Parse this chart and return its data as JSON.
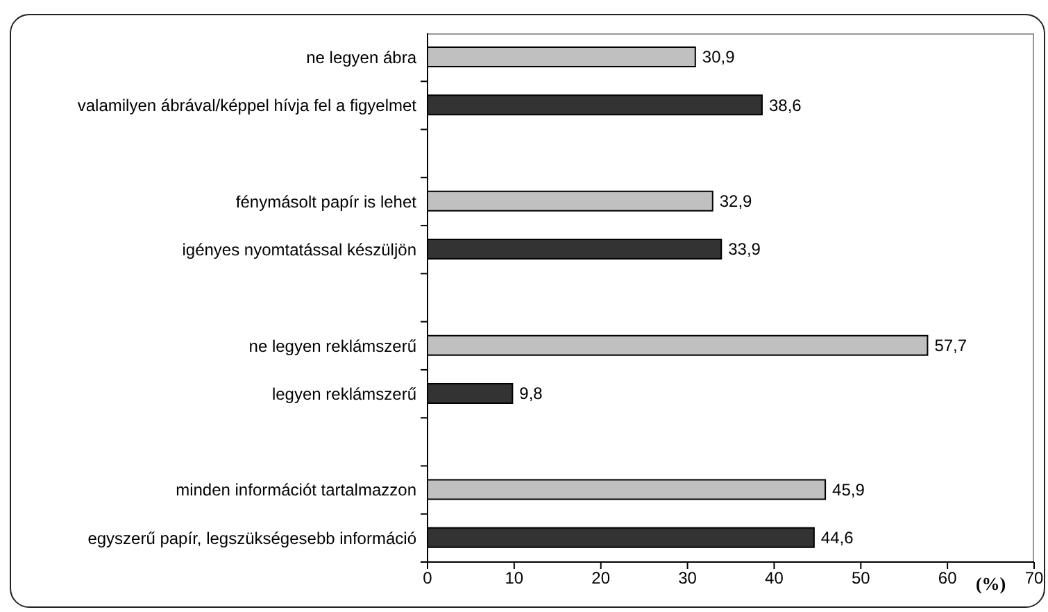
{
  "chart_data": {
    "type": "bar",
    "orientation": "horizontal",
    "categories": [
      "ne legyen ábra",
      "valamilyen ábrával/képpel hívja fel a figyelmet",
      null,
      "fénymásolt papír is lehet",
      "igényes nyomtatással készüljön",
      null,
      "ne legyen reklámszerű",
      "legyen reklámszerű",
      null,
      "minden információt tartalmazzon",
      "egyszerű papír, legszükségesebb információ"
    ],
    "values": [
      30.9,
      38.6,
      null,
      32.9,
      33.9,
      null,
      57.7,
      9.8,
      null,
      45.9,
      44.6
    ],
    "colors": [
      "#c0c0c0",
      "#333333",
      null,
      "#c0c0c0",
      "#333333",
      null,
      "#c0c0c0",
      "#333333",
      null,
      "#c0c0c0",
      "#333333"
    ],
    "value_labels": [
      "30,9",
      "38,6",
      null,
      "32,9",
      "33,9",
      null,
      "57,7",
      "9,8",
      null,
      "45,9",
      "44,6"
    ],
    "xlabel": "(%)",
    "xlim": [
      0,
      70
    ],
    "xticks": [
      0,
      10,
      20,
      30,
      40,
      50,
      60,
      70
    ]
  }
}
